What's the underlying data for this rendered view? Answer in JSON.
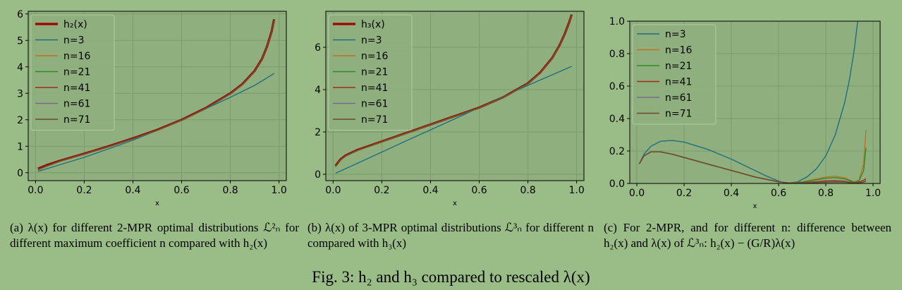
{
  "colors": {
    "background": "#9abd88",
    "plot_bg": "#8fb07e",
    "grid": "#7a9c6a",
    "ref_curve": "#a00000",
    "n3": "#1f6f7f",
    "n16": "#c07020",
    "n21": "#2a8a2a",
    "n41": "#a02a1a",
    "n61": "#7a6a8a",
    "n71": "#6a4a2a"
  },
  "captions": {
    "a": "(a) λ(x) for different 2-MPR optimal distributions ℒ²ₙ for different maximum coefficient n compared with h₂(x)",
    "b": "(b) λ(x) of 3-MPR optimal distributions ℒ³ₙ for different n compared with h₃(x)",
    "c": "(c) For 2-MPR, and for different n: difference between h₂(x) and λ(x) of ℒ³ₙ: h₂(x) − (G/R)λ(x)",
    "figure": "Fig. 3: h₂ and h₃ compared to rescaled λ(x)"
  },
  "chart_data": [
    {
      "type": "line",
      "xlabel": "x",
      "ylabel": "",
      "xlim": [
        -0.03,
        1.03
      ],
      "ylim": [
        -0.3,
        6.1
      ],
      "xticks": [
        "0.0",
        "0.2",
        "0.4",
        "0.6",
        "0.8",
        "1.0"
      ],
      "yticks": [
        "0",
        "1",
        "2",
        "3",
        "4",
        "5",
        "6"
      ],
      "grid": true,
      "legend": "upper-left",
      "series": [
        {
          "name": "h₂(x)",
          "color_key": "ref_curve",
          "thick": true,
          "x": [
            0.01,
            0.05,
            0.1,
            0.2,
            0.3,
            0.4,
            0.5,
            0.6,
            0.7,
            0.8,
            0.85,
            0.9,
            0.93,
            0.95,
            0.97,
            0.98
          ],
          "y": [
            0.15,
            0.3,
            0.45,
            0.72,
            1.0,
            1.3,
            1.62,
            2.0,
            2.45,
            3.0,
            3.35,
            3.85,
            4.3,
            4.75,
            5.35,
            5.8
          ]
        },
        {
          "name": "n=3",
          "color_key": "n3",
          "x": [
            0.01,
            0.1,
            0.2,
            0.3,
            0.4,
            0.5,
            0.6,
            0.7,
            0.8,
            0.9,
            0.98
          ],
          "y": [
            0.05,
            0.3,
            0.58,
            0.9,
            1.23,
            1.6,
            2.0,
            2.42,
            2.85,
            3.3,
            3.75
          ]
        },
        {
          "name": "n=16",
          "color_key": "n16",
          "x": [
            0.01,
            0.05,
            0.1,
            0.2,
            0.3,
            0.4,
            0.5,
            0.6,
            0.7,
            0.8,
            0.85,
            0.9,
            0.93,
            0.95,
            0.97,
            0.98
          ],
          "y": [
            0.1,
            0.25,
            0.42,
            0.7,
            0.98,
            1.28,
            1.6,
            1.98,
            2.43,
            2.98,
            3.33,
            3.83,
            4.28,
            4.73,
            5.33,
            5.75
          ]
        },
        {
          "name": "n=21",
          "color_key": "n21",
          "x": [
            0.01,
            0.05,
            0.1,
            0.2,
            0.3,
            0.4,
            0.5,
            0.6,
            0.7,
            0.8,
            0.85,
            0.9,
            0.93,
            0.95,
            0.97,
            0.98
          ],
          "y": [
            0.11,
            0.26,
            0.43,
            0.71,
            0.99,
            1.29,
            1.61,
            1.99,
            2.44,
            2.99,
            3.34,
            3.84,
            4.29,
            4.74,
            5.34,
            5.76
          ]
        },
        {
          "name": "n=41",
          "color_key": "n41",
          "x": [
            0.01,
            0.05,
            0.1,
            0.2,
            0.3,
            0.4,
            0.5,
            0.6,
            0.7,
            0.8,
            0.85,
            0.9,
            0.93,
            0.95,
            0.97,
            0.98
          ],
          "y": [
            0.12,
            0.27,
            0.44,
            0.71,
            0.99,
            1.29,
            1.61,
            1.99,
            2.44,
            2.99,
            3.34,
            3.84,
            4.29,
            4.74,
            5.34,
            5.78
          ]
        },
        {
          "name": "n=61",
          "color_key": "n61",
          "x": [
            0.01,
            0.05,
            0.1,
            0.2,
            0.3,
            0.4,
            0.5,
            0.6,
            0.7,
            0.8,
            0.85,
            0.9,
            0.93,
            0.95,
            0.97,
            0.98
          ],
          "y": [
            0.12,
            0.27,
            0.44,
            0.71,
            0.99,
            1.29,
            1.61,
            1.99,
            2.44,
            2.99,
            3.34,
            3.84,
            4.29,
            4.74,
            5.34,
            5.78
          ]
        },
        {
          "name": "n=71",
          "color_key": "n71",
          "x": [
            0.01,
            0.05,
            0.1,
            0.2,
            0.3,
            0.4,
            0.5,
            0.6,
            0.7,
            0.8,
            0.85,
            0.9,
            0.93,
            0.95,
            0.97,
            0.98
          ],
          "y": [
            0.12,
            0.27,
            0.44,
            0.71,
            0.99,
            1.29,
            1.61,
            1.99,
            2.44,
            2.99,
            3.34,
            3.84,
            4.29,
            4.74,
            5.34,
            5.78
          ]
        }
      ]
    },
    {
      "type": "line",
      "xlabel": "x",
      "ylabel": "",
      "xlim": [
        -0.03,
        1.03
      ],
      "ylim": [
        -0.3,
        7.7
      ],
      "xticks": [
        "0.0",
        "0.2",
        "0.4",
        "0.6",
        "0.8",
        "1.0"
      ],
      "yticks": [
        "0",
        "2",
        "4",
        "6"
      ],
      "yticks_values": [
        0,
        2,
        4,
        6
      ],
      "grid": true,
      "legend": "upper-left",
      "series": [
        {
          "name": "h₃(x)",
          "color_key": "ref_curve",
          "thick": true,
          "x": [
            0.01,
            0.03,
            0.05,
            0.1,
            0.2,
            0.3,
            0.4,
            0.5,
            0.6,
            0.7,
            0.8,
            0.85,
            0.9,
            0.93,
            0.95,
            0.97,
            0.98
          ],
          "y": [
            0.4,
            0.7,
            0.88,
            1.15,
            1.55,
            1.95,
            2.35,
            2.75,
            3.15,
            3.65,
            4.3,
            4.8,
            5.5,
            6.1,
            6.6,
            7.2,
            7.55
          ]
        },
        {
          "name": "n=3",
          "color_key": "n3",
          "x": [
            0.01,
            0.1,
            0.2,
            0.3,
            0.4,
            0.5,
            0.6,
            0.7,
            0.8,
            0.9,
            0.98
          ],
          "y": [
            0.05,
            0.52,
            1.05,
            1.58,
            2.1,
            2.62,
            3.15,
            3.68,
            4.2,
            4.7,
            5.1
          ]
        },
        {
          "name": "n=16",
          "color_key": "n16",
          "x": [
            0.01,
            0.03,
            0.05,
            0.1,
            0.2,
            0.3,
            0.4,
            0.5,
            0.6,
            0.7,
            0.8,
            0.85,
            0.9,
            0.93,
            0.95,
            0.97,
            0.98
          ],
          "y": [
            0.35,
            0.66,
            0.85,
            1.12,
            1.53,
            1.93,
            2.33,
            2.73,
            3.13,
            3.63,
            4.28,
            4.78,
            5.48,
            6.08,
            6.58,
            7.18,
            7.5
          ]
        },
        {
          "name": "n=21",
          "color_key": "n21",
          "x": [
            0.01,
            0.03,
            0.05,
            0.1,
            0.2,
            0.3,
            0.4,
            0.5,
            0.6,
            0.7,
            0.8,
            0.85,
            0.9,
            0.93,
            0.95,
            0.97,
            0.98
          ],
          "y": [
            0.36,
            0.67,
            0.86,
            1.13,
            1.54,
            1.94,
            2.34,
            2.74,
            3.14,
            3.64,
            4.29,
            4.79,
            5.49,
            6.09,
            6.59,
            7.19,
            7.52
          ]
        },
        {
          "name": "n=41",
          "color_key": "n41",
          "x": [
            0.01,
            0.03,
            0.05,
            0.1,
            0.2,
            0.3,
            0.4,
            0.5,
            0.6,
            0.7,
            0.8,
            0.85,
            0.9,
            0.93,
            0.95,
            0.97,
            0.98
          ],
          "y": [
            0.38,
            0.68,
            0.87,
            1.14,
            1.55,
            1.95,
            2.35,
            2.75,
            3.15,
            3.65,
            4.3,
            4.8,
            5.5,
            6.1,
            6.6,
            7.2,
            7.54
          ]
        },
        {
          "name": "n=61",
          "color_key": "n61",
          "x": [
            0.01,
            0.03,
            0.05,
            0.1,
            0.2,
            0.3,
            0.4,
            0.5,
            0.6,
            0.7,
            0.8,
            0.85,
            0.9,
            0.93,
            0.95,
            0.97,
            0.98
          ],
          "y": [
            0.38,
            0.68,
            0.87,
            1.14,
            1.55,
            1.95,
            2.35,
            2.75,
            3.15,
            3.65,
            4.3,
            4.8,
            5.5,
            6.1,
            6.6,
            7.2,
            7.54
          ]
        },
        {
          "name": "n=71",
          "color_key": "n71",
          "x": [
            0.01,
            0.03,
            0.05,
            0.1,
            0.2,
            0.3,
            0.4,
            0.5,
            0.6,
            0.7,
            0.8,
            0.85,
            0.9,
            0.93,
            0.95,
            0.97,
            0.98
          ],
          "y": [
            0.38,
            0.68,
            0.87,
            1.14,
            1.55,
            1.95,
            2.35,
            2.75,
            3.15,
            3.65,
            4.3,
            4.8,
            5.5,
            6.1,
            6.6,
            7.2,
            7.54
          ]
        }
      ]
    },
    {
      "type": "line",
      "xlabel": "x",
      "ylabel": "",
      "xlim": [
        -0.03,
        1.03
      ],
      "ylim": [
        0.0,
        1.0
      ],
      "xticks": [
        "0.0",
        "0.2",
        "0.4",
        "0.6",
        "0.8",
        "1.0"
      ],
      "yticks": [
        "0.0",
        "0.2",
        "0.4",
        "0.6",
        "0.8",
        "1.0"
      ],
      "grid": true,
      "legend": "upper-left",
      "series": [
        {
          "name": "n=3",
          "color_key": "n3",
          "x": [
            0.01,
            0.03,
            0.06,
            0.1,
            0.15,
            0.2,
            0.3,
            0.4,
            0.5,
            0.55,
            0.6,
            0.63,
            0.68,
            0.72,
            0.76,
            0.8,
            0.84,
            0.88,
            0.9,
            0.92,
            0.935
          ],
          "y": [
            0.12,
            0.18,
            0.23,
            0.26,
            0.265,
            0.255,
            0.21,
            0.15,
            0.08,
            0.045,
            0.015,
            0.0,
            0.01,
            0.04,
            0.09,
            0.17,
            0.3,
            0.5,
            0.64,
            0.82,
            1.0
          ]
        },
        {
          "name": "n=16",
          "color_key": "n16",
          "x": [
            0.01,
            0.03,
            0.06,
            0.1,
            0.15,
            0.2,
            0.3,
            0.4,
            0.5,
            0.6,
            0.65,
            0.7,
            0.75,
            0.8,
            0.84,
            0.88,
            0.92,
            0.94,
            0.96,
            0.97
          ],
          "y": [
            0.12,
            0.17,
            0.195,
            0.195,
            0.18,
            0.16,
            0.12,
            0.08,
            0.04,
            0.01,
            0.003,
            0.01,
            0.025,
            0.04,
            0.045,
            0.035,
            0.01,
            0.02,
            0.12,
            0.33
          ]
        },
        {
          "name": "n=21",
          "color_key": "n21",
          "x": [
            0.01,
            0.03,
            0.06,
            0.1,
            0.15,
            0.2,
            0.3,
            0.4,
            0.5,
            0.6,
            0.65,
            0.7,
            0.75,
            0.8,
            0.84,
            0.88,
            0.92,
            0.94,
            0.96,
            0.97
          ],
          "y": [
            0.12,
            0.17,
            0.195,
            0.195,
            0.18,
            0.16,
            0.12,
            0.08,
            0.04,
            0.01,
            0.002,
            0.008,
            0.02,
            0.032,
            0.036,
            0.028,
            0.008,
            0.015,
            0.08,
            0.22
          ]
        },
        {
          "name": "n=41",
          "color_key": "n41",
          "x": [
            0.01,
            0.03,
            0.06,
            0.1,
            0.15,
            0.2,
            0.3,
            0.4,
            0.5,
            0.6,
            0.65,
            0.7,
            0.75,
            0.8,
            0.84,
            0.88,
            0.92,
            0.94,
            0.96,
            0.97
          ],
          "y": [
            0.12,
            0.17,
            0.195,
            0.195,
            0.18,
            0.16,
            0.12,
            0.08,
            0.04,
            0.01,
            0.001,
            0.004,
            0.01,
            0.016,
            0.018,
            0.014,
            0.005,
            0.008,
            0.02,
            0.03
          ]
        },
        {
          "name": "n=61",
          "color_key": "n61",
          "x": [
            0.01,
            0.03,
            0.06,
            0.1,
            0.15,
            0.2,
            0.3,
            0.4,
            0.5,
            0.6,
            0.65,
            0.7,
            0.75,
            0.8,
            0.84,
            0.88,
            0.92,
            0.94,
            0.96,
            0.97
          ],
          "y": [
            0.12,
            0.17,
            0.195,
            0.195,
            0.18,
            0.16,
            0.12,
            0.08,
            0.04,
            0.01,
            0.001,
            0.003,
            0.007,
            0.01,
            0.012,
            0.01,
            0.004,
            0.005,
            0.01,
            0.02
          ]
        },
        {
          "name": "n=71",
          "color_key": "n71",
          "x": [
            0.01,
            0.03,
            0.06,
            0.1,
            0.15,
            0.2,
            0.3,
            0.4,
            0.5,
            0.6,
            0.65,
            0.7,
            0.75,
            0.8,
            0.84,
            0.88,
            0.92,
            0.94,
            0.96,
            0.97
          ],
          "y": [
            0.12,
            0.17,
            0.195,
            0.195,
            0.18,
            0.16,
            0.12,
            0.08,
            0.04,
            0.01,
            0.001,
            0.002,
            0.005,
            0.008,
            0.009,
            0.008,
            0.003,
            0.004,
            0.008,
            0.015
          ]
        }
      ]
    }
  ]
}
